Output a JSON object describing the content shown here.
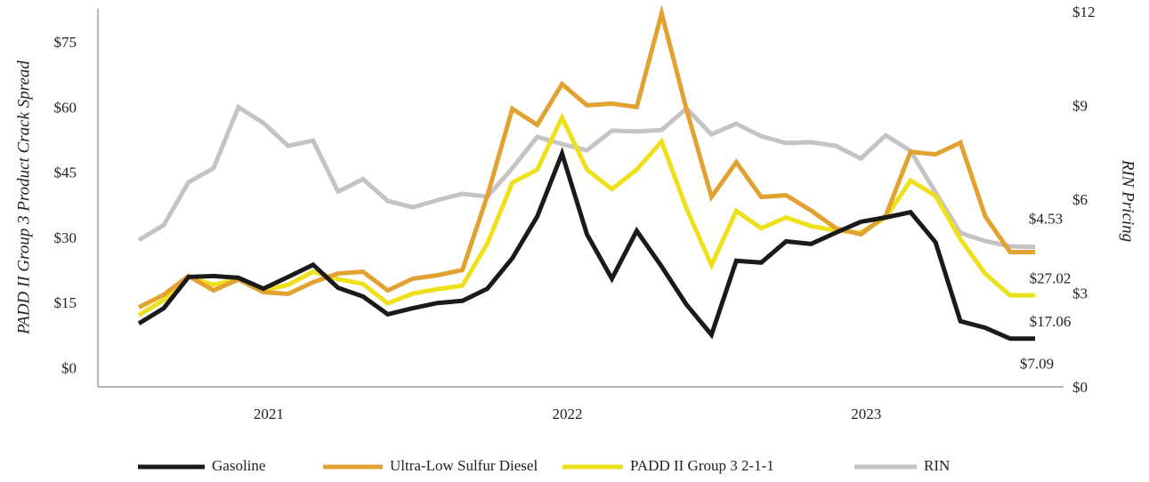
{
  "chart_data": {
    "type": "line",
    "ylabel": "PADD II Group 3 Product Crack Spread",
    "y2label": "RIN Pricing",
    "categories": [
      null,
      null,
      null,
      null,
      null,
      "2021",
      null,
      null,
      null,
      null,
      null,
      null,
      null,
      null,
      null,
      null,
      null,
      "2022",
      null,
      null,
      null,
      null,
      null,
      null,
      null,
      null,
      null,
      null,
      null,
      "2023",
      null,
      null,
      null,
      null,
      null,
      null,
      null
    ],
    "ylim": [
      -4,
      83
    ],
    "yticks": [
      {
        "value": 0,
        "label": "$0"
      },
      {
        "value": 15,
        "label": "$15"
      },
      {
        "value": 30,
        "label": "$30"
      },
      {
        "value": 45,
        "label": "$45"
      },
      {
        "value": 60,
        "label": "$60"
      },
      {
        "value": 75,
        "label": "$75"
      }
    ],
    "y2lim": [
      0.06,
      12.14
    ],
    "y2ticks": [
      {
        "value": 0,
        "label": "$0"
      },
      {
        "value": 3,
        "label": "$3"
      },
      {
        "value": 6,
        "label": "$6"
      },
      {
        "value": 9,
        "label": "$9"
      },
      {
        "value": 12,
        "label": "$12"
      }
    ],
    "series": [
      {
        "name": "Gasoline",
        "color": "#1a1a1a",
        "values": [
          10.6,
          14.1,
          21.3,
          21.5,
          21.1,
          18.6,
          21.3,
          24.1,
          18.8,
          16.8,
          12.7,
          14.1,
          15.3,
          15.8,
          18.6,
          25.6,
          35.2,
          49.7,
          31.1,
          20.9,
          31.9,
          23.7,
          14.9,
          8.0,
          25.0,
          24.6,
          29.5,
          28.9,
          31.5,
          34.0,
          35.0,
          36.2,
          29.3,
          11.1,
          9.6,
          7.09,
          7.09
        ],
        "value_labels": [
          null,
          null,
          null,
          null,
          null,
          null,
          null,
          null,
          null,
          null,
          null,
          null,
          null,
          null,
          null,
          null,
          null,
          null,
          null,
          null,
          null,
          null,
          null,
          null,
          null,
          null,
          null,
          null,
          null,
          null,
          null,
          null,
          null,
          null,
          null,
          null,
          "$7.09"
        ]
      },
      {
        "name": "Ultra-Low Sulfur Diesel",
        "color": "#e2a232",
        "values": [
          14.3,
          17.2,
          21.5,
          18.2,
          20.7,
          17.8,
          17.4,
          20.1,
          22.1,
          22.5,
          18.2,
          20.9,
          21.7,
          22.9,
          40.0,
          60.0,
          56.3,
          65.7,
          60.8,
          61.2,
          60.4,
          82.0,
          59.8,
          39.7,
          47.7,
          39.7,
          40.1,
          36.6,
          32.5,
          31.1,
          35.4,
          50.1,
          49.5,
          52.2,
          35.2,
          27.02,
          27.02
        ],
        "value_labels": [
          null,
          null,
          null,
          null,
          null,
          null,
          null,
          null,
          null,
          null,
          null,
          null,
          null,
          null,
          null,
          null,
          null,
          null,
          null,
          null,
          null,
          null,
          null,
          null,
          null,
          null,
          null,
          null,
          null,
          null,
          null,
          null,
          null,
          null,
          null,
          null,
          "$27.02"
        ]
      },
      {
        "name": "PADD II Group 3 2-1-1",
        "color": "#efe01c",
        "values": [
          12.5,
          16.0,
          21.3,
          19.5,
          20.8,
          18.2,
          19.5,
          22.5,
          20.8,
          19.7,
          15.2,
          17.5,
          18.5,
          19.3,
          29.0,
          43.0,
          46.0,
          58.0,
          46.0,
          41.5,
          46.0,
          52.5,
          37.0,
          24.0,
          36.5,
          32.5,
          35.0,
          33.0,
          32.0,
          31.5,
          35.0,
          43.5,
          40.0,
          30.0,
          22.0,
          17.06,
          17.06
        ],
        "value_labels": [
          null,
          null,
          null,
          null,
          null,
          null,
          null,
          null,
          null,
          null,
          null,
          null,
          null,
          null,
          null,
          null,
          null,
          null,
          null,
          null,
          null,
          null,
          null,
          null,
          null,
          null,
          null,
          null,
          null,
          null,
          null,
          null,
          null,
          null,
          null,
          null,
          "$17.06"
        ]
      },
      {
        "name": "RIN",
        "color": "#c4c4c4",
        "axis": "y2",
        "values": [
          4.75,
          5.23,
          6.6,
          7.05,
          9.0,
          8.5,
          7.76,
          7.93,
          6.3,
          6.7,
          6.0,
          5.8,
          6.03,
          6.23,
          6.14,
          7.05,
          8.05,
          7.82,
          7.62,
          8.25,
          8.22,
          8.27,
          8.96,
          8.13,
          8.47,
          8.07,
          7.85,
          7.88,
          7.76,
          7.36,
          8.1,
          7.6,
          6.28,
          4.98,
          4.72,
          4.55,
          4.53
        ],
        "value_labels": [
          null,
          null,
          null,
          null,
          null,
          null,
          null,
          null,
          null,
          null,
          null,
          null,
          null,
          null,
          null,
          null,
          null,
          null,
          null,
          null,
          null,
          null,
          null,
          null,
          null,
          null,
          null,
          null,
          null,
          null,
          null,
          null,
          null,
          null,
          null,
          null,
          "$4.53"
        ]
      }
    ]
  }
}
